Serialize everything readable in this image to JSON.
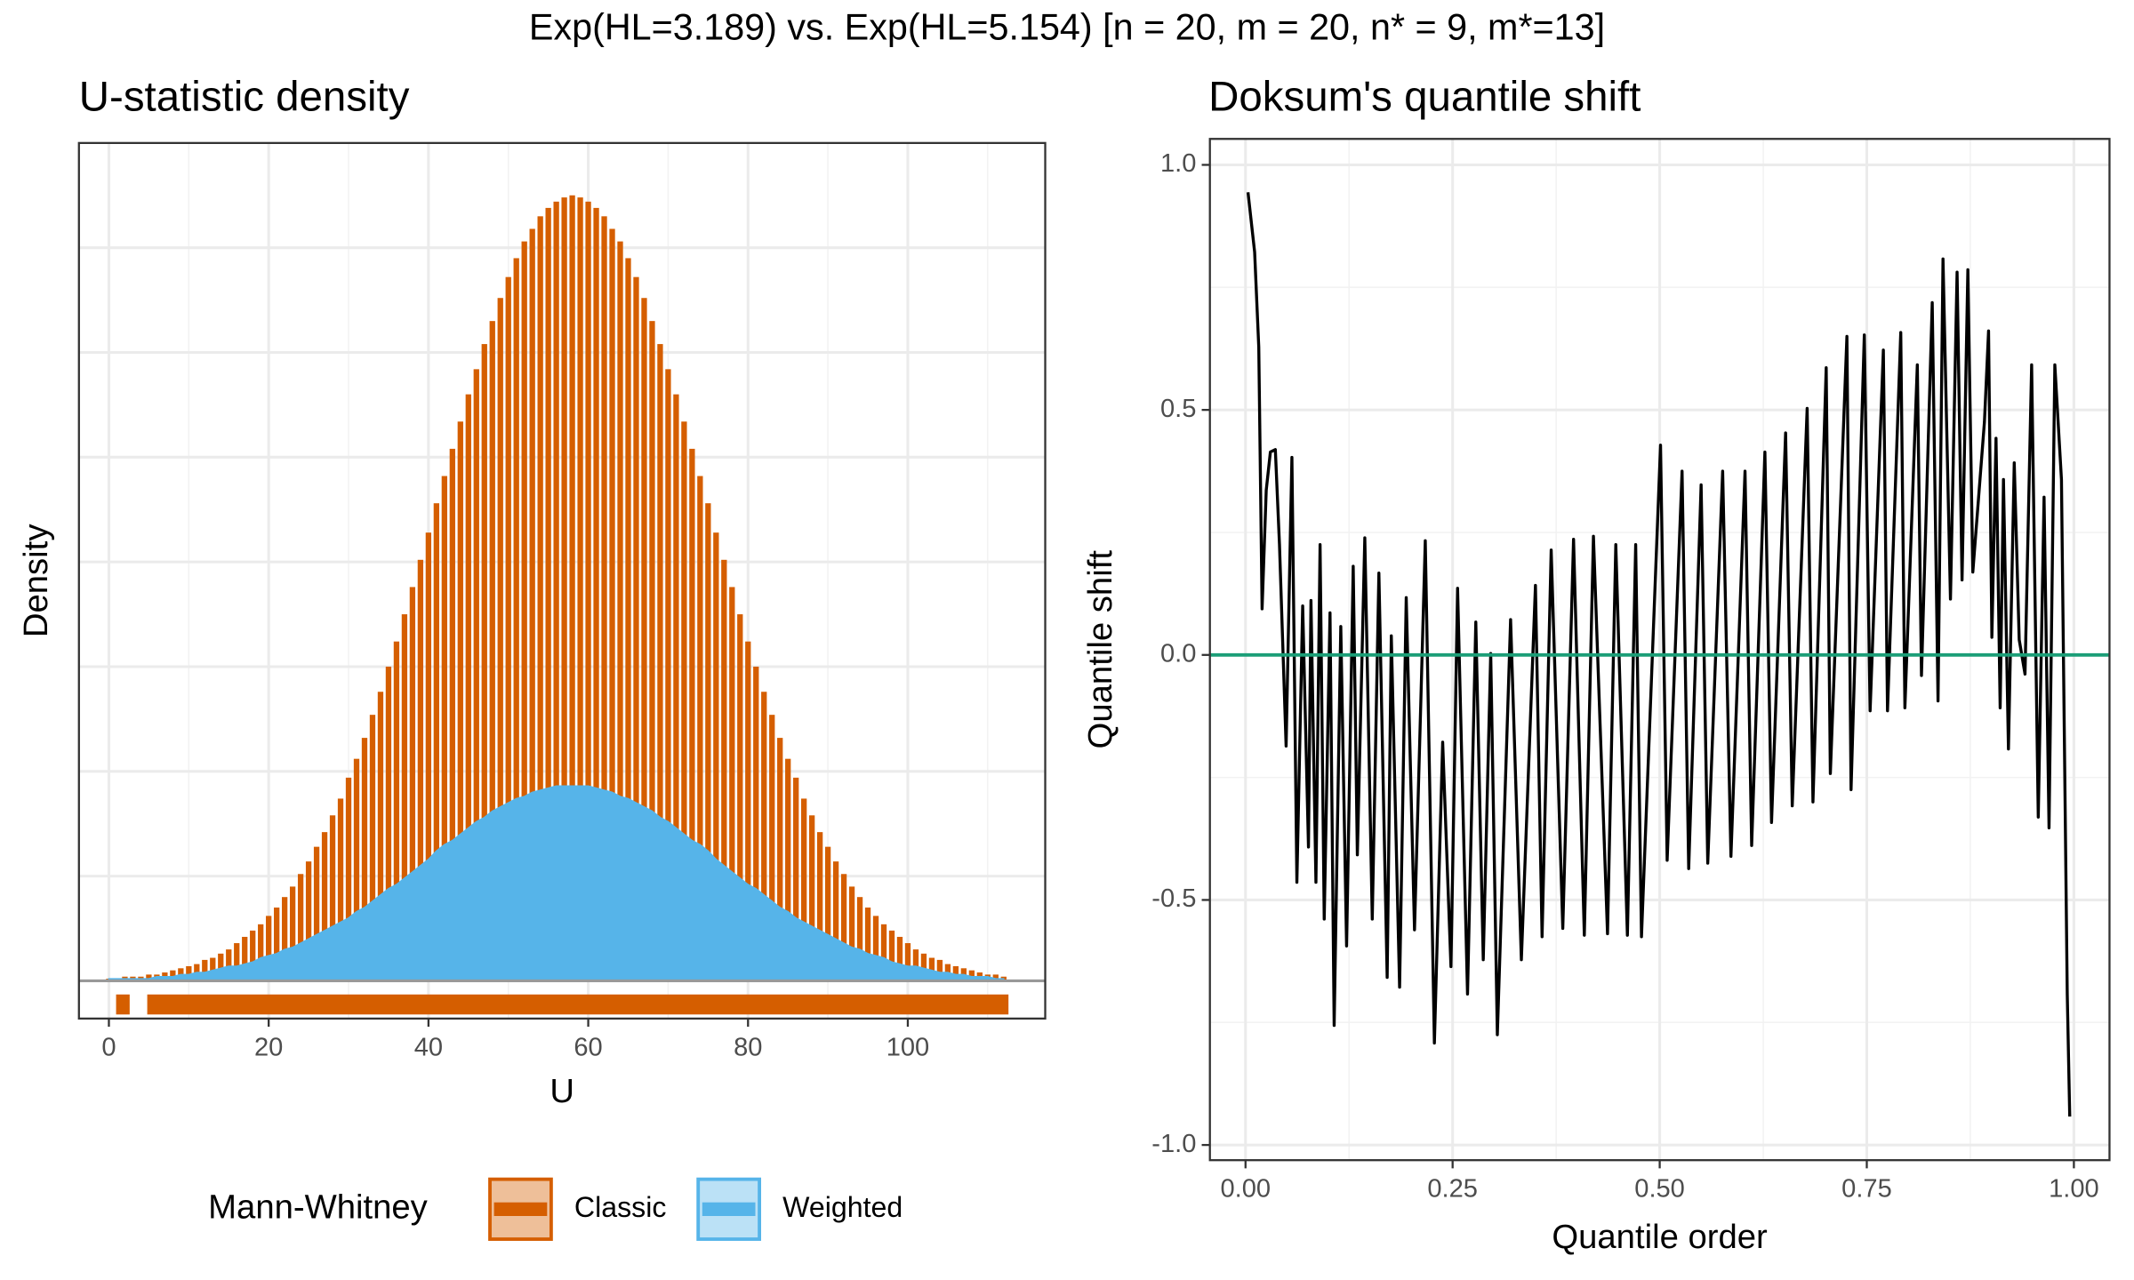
{
  "title": "Exp(HL=3.189) vs. Exp(HL=5.154) [n = 20, m = 20, n* = 9, m*=13]",
  "chart_data": [
    {
      "type": "bar",
      "title": "U-statistic density",
      "x_label": "U",
      "y_label": "Density",
      "x": [
        0,
        1,
        2,
        3,
        4,
        5,
        6,
        7,
        8,
        9,
        10,
        11,
        12,
        13,
        14,
        15,
        16,
        17,
        18,
        19,
        20,
        21,
        22,
        23,
        24,
        25,
        26,
        27,
        28,
        29,
        30,
        31,
        32,
        33,
        34,
        35,
        36,
        37,
        38,
        39,
        40,
        41,
        42,
        43,
        44,
        45,
        46,
        47,
        48,
        49,
        50,
        51,
        52,
        53,
        54,
        55,
        56,
        57,
        58,
        59,
        60,
        61,
        62,
        63,
        64,
        65,
        66,
        67,
        68,
        69,
        70,
        71,
        72,
        73,
        74,
        75,
        76,
        77,
        78,
        79,
        80,
        81,
        82,
        83,
        84,
        85,
        86,
        87,
        88,
        89,
        90,
        91,
        92,
        93,
        94,
        95,
        96,
        97,
        98,
        99,
        100,
        101,
        102,
        103,
        104,
        105,
        106,
        107,
        108,
        109,
        110,
        111,
        112
      ],
      "series": [
        {
          "name": "Classic",
          "type": "bar",
          "color": "#d55e00",
          "values": [
            0.0001,
            0.0001,
            0.0002,
            0.0002,
            0.0002,
            0.0003,
            0.0003,
            0.0004,
            0.0005,
            0.0006,
            0.0007,
            0.0008,
            0.001,
            0.0011,
            0.0013,
            0.0015,
            0.0018,
            0.0021,
            0.0024,
            0.0027,
            0.0031,
            0.0035,
            0.004,
            0.0045,
            0.0051,
            0.0057,
            0.0064,
            0.0071,
            0.0079,
            0.0087,
            0.0097,
            0.0106,
            0.0116,
            0.0127,
            0.0138,
            0.015,
            0.0162,
            0.0175,
            0.0188,
            0.0201,
            0.0214,
            0.0228,
            0.0241,
            0.0254,
            0.0267,
            0.028,
            0.0292,
            0.0304,
            0.0315,
            0.0326,
            0.0336,
            0.0345,
            0.0353,
            0.0359,
            0.0365,
            0.0369,
            0.0372,
            0.0374,
            0.0375,
            0.0374,
            0.0372,
            0.0369,
            0.0365,
            0.0359,
            0.0353,
            0.0345,
            0.0336,
            0.0326,
            0.0315,
            0.0304,
            0.0292,
            0.028,
            0.0267,
            0.0254,
            0.0241,
            0.0228,
            0.0214,
            0.0201,
            0.0188,
            0.0175,
            0.0162,
            0.015,
            0.0138,
            0.0127,
            0.0116,
            0.0106,
            0.0097,
            0.0087,
            0.0079,
            0.0071,
            0.0064,
            0.0057,
            0.0051,
            0.0045,
            0.004,
            0.0035,
            0.0031,
            0.0027,
            0.0024,
            0.0021,
            0.0018,
            0.0015,
            0.0013,
            0.0011,
            0.001,
            0.0008,
            0.0007,
            0.0006,
            0.0005,
            0.0004,
            0.0003,
            0.0003,
            0.0002
          ]
        },
        {
          "name": "Weighted",
          "type": "area",
          "color": "#56b4e9",
          "values": [
            0.0001,
            0.0001,
            0.0001,
            0.0001,
            0.0001,
            0.0001,
            0.0002,
            0.0002,
            0.0002,
            0.0003,
            0.0003,
            0.0004,
            0.0004,
            0.0005,
            0.0006,
            0.0007,
            0.0007,
            0.0008,
            0.0009,
            0.0011,
            0.0012,
            0.0013,
            0.0015,
            0.0016,
            0.0018,
            0.002,
            0.0022,
            0.0024,
            0.0026,
            0.0028,
            0.003,
            0.0033,
            0.0035,
            0.0038,
            0.0041,
            0.0044,
            0.0046,
            0.0049,
            0.0052,
            0.0055,
            0.0058,
            0.0062,
            0.0065,
            0.0067,
            0.007,
            0.0073,
            0.0076,
            0.0078,
            0.0081,
            0.0083,
            0.0085,
            0.0087,
            0.0088,
            0.009,
            0.0091,
            0.0092,
            0.0093,
            0.0093,
            0.0093,
            0.0093,
            0.0093,
            0.0092,
            0.0091,
            0.009,
            0.0088,
            0.0087,
            0.0085,
            0.0083,
            0.0081,
            0.0078,
            0.0076,
            0.0073,
            0.007,
            0.0067,
            0.0065,
            0.0062,
            0.0058,
            0.0055,
            0.0052,
            0.0049,
            0.0046,
            0.0044,
            0.0041,
            0.0038,
            0.0035,
            0.0033,
            0.003,
            0.0028,
            0.0026,
            0.0024,
            0.0022,
            0.002,
            0.0018,
            0.0016,
            0.0015,
            0.0013,
            0.0012,
            0.0011,
            0.0009,
            0.0008,
            0.0007,
            0.0007,
            0.0006,
            0.0005,
            0.0004,
            0.0004,
            0.0003,
            0.0003,
            0.0002,
            0.0002,
            0.0002,
            0.0001,
            0.0001
          ]
        }
      ],
      "support_ranges": [
        [
          0.9,
          2.6
        ],
        [
          4.8,
          112.6
        ]
      ],
      "xlim": [
        -3.75,
        117.2
      ],
      "xticks": [
        0,
        20,
        40,
        60,
        80,
        100
      ],
      "xminor": [
        10,
        30,
        50,
        70,
        90,
        110
      ],
      "ylim": [
        -0.0018,
        0.04
      ],
      "yticks": [
        0,
        0.005,
        0.01,
        0.015,
        0.02,
        0.025,
        0.03,
        0.035
      ],
      "grid": true,
      "legend_title": "Mann-Whitney",
      "legend_position": "bottom"
    },
    {
      "type": "line",
      "title": "Doksum's quantile shift",
      "x_label": "Quantile order",
      "y_label": "Quantile shift",
      "color": "#000000",
      "hline": 0,
      "hline_color": "#1b9e77",
      "x": [
        0.003,
        0.011,
        0.016,
        0.02,
        0.025,
        0.03,
        0.036,
        0.041,
        0.049,
        0.056,
        0.062,
        0.069,
        0.076,
        0.079,
        0.085,
        0.09,
        0.095,
        0.102,
        0.107,
        0.115,
        0.122,
        0.13,
        0.135,
        0.144,
        0.153,
        0.161,
        0.171,
        0.176,
        0.186,
        0.194,
        0.204,
        0.217,
        0.228,
        0.238,
        0.248,
        0.256,
        0.268,
        0.278,
        0.287,
        0.296,
        0.304,
        0.32,
        0.333,
        0.35,
        0.358,
        0.369,
        0.383,
        0.396,
        0.409,
        0.42,
        0.437,
        0.447,
        0.461,
        0.471,
        0.478,
        0.501,
        0.509,
        0.527,
        0.535,
        0.55,
        0.558,
        0.576,
        0.586,
        0.603,
        0.611,
        0.627,
        0.635,
        0.652,
        0.66,
        0.678,
        0.685,
        0.701,
        0.706,
        0.726,
        0.731,
        0.747,
        0.754,
        0.77,
        0.775,
        0.791,
        0.796,
        0.811,
        0.816,
        0.829,
        0.836,
        0.842,
        0.851,
        0.859,
        0.865,
        0.872,
        0.878,
        0.892,
        0.897,
        0.901,
        0.906,
        0.911,
        0.915,
        0.921,
        0.928,
        0.934,
        0.941,
        0.949,
        0.957,
        0.964,
        0.97,
        0.977,
        0.985,
        0.992,
        0.995
      ],
      "values": [
        0.944,
        0.822,
        0.628,
        0.094,
        0.336,
        0.414,
        0.419,
        0.225,
        -0.186,
        0.403,
        -0.464,
        0.1,
        -0.392,
        0.111,
        -0.464,
        0.225,
        -0.539,
        0.086,
        -0.756,
        0.058,
        -0.594,
        0.181,
        -0.408,
        0.239,
        -0.539,
        0.167,
        -0.658,
        0.039,
        -0.678,
        0.117,
        -0.561,
        0.233,
        -0.792,
        -0.178,
        -0.636,
        0.136,
        -0.692,
        0.067,
        -0.622,
        0.003,
        -0.775,
        0.072,
        -0.622,
        0.142,
        -0.575,
        0.214,
        -0.558,
        0.236,
        -0.572,
        0.242,
        -0.569,
        0.225,
        -0.572,
        0.225,
        -0.575,
        0.428,
        -0.419,
        0.375,
        -0.436,
        0.347,
        -0.425,
        0.375,
        -0.411,
        0.375,
        -0.389,
        0.414,
        -0.342,
        0.453,
        -0.308,
        0.503,
        -0.3,
        0.586,
        -0.242,
        0.65,
        -0.275,
        0.653,
        -0.114,
        0.622,
        -0.114,
        0.658,
        -0.108,
        0.592,
        -0.042,
        0.719,
        -0.094,
        0.808,
        0.114,
        0.781,
        0.153,
        0.786,
        0.169,
        0.475,
        0.661,
        0.036,
        0.442,
        -0.108,
        0.358,
        -0.192,
        0.392,
        0.031,
        -0.039,
        0.592,
        -0.331,
        0.322,
        -0.353,
        0.592,
        0.358,
        -0.692,
        -0.942
      ],
      "xlim": [
        -0.043,
        1.043
      ],
      "xticks": [
        {
          "value": 0,
          "label": "0.00"
        },
        {
          "value": 0.25,
          "label": "0.25"
        },
        {
          "value": 0.5,
          "label": "0.50"
        },
        {
          "value": 0.75,
          "label": "0.75"
        },
        {
          "value": 1,
          "label": "1.00"
        }
      ],
      "xminor": [
        0.125,
        0.375,
        0.625,
        0.875
      ],
      "ylim": [
        -1.031,
        1.053
      ],
      "yticks": [
        {
          "value": -1,
          "label": "-1.0"
        },
        {
          "value": -0.5,
          "label": "-0.5"
        },
        {
          "value": 0,
          "label": "0.0"
        },
        {
          "value": 0.5,
          "label": "0.5"
        },
        {
          "value": 1,
          "label": "1.0"
        }
      ],
      "yminor": [
        -0.75,
        -0.25,
        0.25,
        0.75
      ],
      "grid": true
    }
  ]
}
